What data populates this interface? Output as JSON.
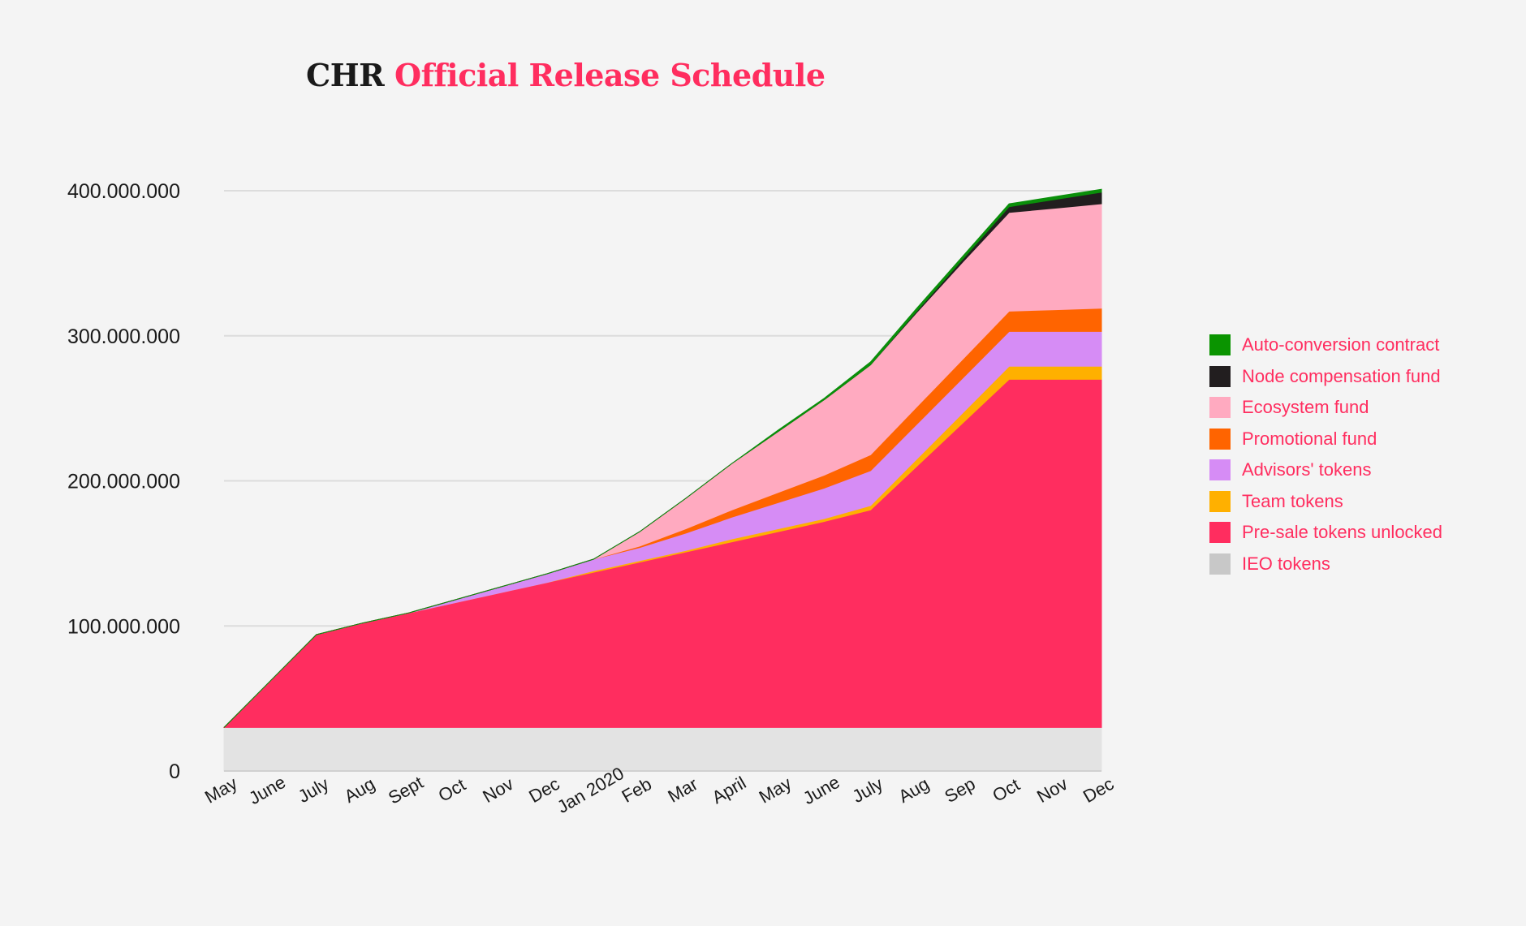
{
  "chart_data": {
    "type": "area",
    "stacked": true,
    "title_prefix": "CHR",
    "title_main": "Official Release Schedule",
    "xlabel": "",
    "ylabel": "",
    "ylim": [
      0,
      400000000
    ],
    "y_ticks": [
      {
        "value": 0,
        "label": "0"
      },
      {
        "value": 100000000,
        "label": "100.000.000"
      },
      {
        "value": 200000000,
        "label": "200.000.000"
      },
      {
        "value": 300000000,
        "label": "300.000.000"
      },
      {
        "value": 400000000,
        "label": "400.000.000"
      }
    ],
    "grid": true,
    "legend_position": "right",
    "categories": [
      "May",
      "June",
      "July",
      "Aug",
      "Sept",
      "Oct",
      "Nov",
      "Dec",
      "Jan 2020",
      "Feb",
      "Mar",
      "April",
      "May",
      "June",
      "July",
      "Aug",
      "Sep",
      "Oct",
      "Nov",
      "Dec"
    ],
    "series": [
      {
        "name": "IEO tokens",
        "color": "#e3e3e3",
        "legend_color": "#c8c8c8",
        "values": [
          30000000,
          30000000,
          30000000,
          30000000,
          30000000,
          30000000,
          30000000,
          30000000,
          30000000,
          30000000,
          30000000,
          30000000,
          30000000,
          30000000,
          30000000,
          30000000,
          30000000,
          30000000,
          30000000,
          30000000
        ]
      },
      {
        "name": "Pre-sale tokens unlocked",
        "color": "#ff2d5f",
        "legend_color": "#ff2d5f",
        "values": [
          0,
          32000000,
          64000000,
          72000000,
          79000000,
          86000000,
          93000000,
          100000000,
          107000000,
          114000000,
          121000000,
          128000000,
          135000000,
          142000000,
          150000000,
          180000000,
          210000000,
          240000000,
          240000000,
          240000000
        ]
      },
      {
        "name": "Team tokens",
        "color": "#ffb000",
        "legend_color": "#ffb000",
        "values": [
          0,
          0,
          0,
          0,
          0,
          0,
          0,
          0,
          1000000,
          1000000,
          1000000,
          2000000,
          2000000,
          2000000,
          3000000,
          5000000,
          7000000,
          9000000,
          9000000,
          9000000
        ]
      },
      {
        "name": "Advisors' tokens",
        "color": "#d68cf5",
        "legend_color": "#d68cf5",
        "values": [
          0,
          0,
          0,
          0,
          0,
          2000000,
          4000000,
          6000000,
          8000000,
          9000000,
          12000000,
          15000000,
          18000000,
          21000000,
          24000000,
          24000000,
          24000000,
          24000000,
          24000000,
          24000000
        ]
      },
      {
        "name": "Promotional fund",
        "color": "#ff6400",
        "legend_color": "#ff6400",
        "values": [
          0,
          0,
          0,
          0,
          0,
          0,
          0,
          0,
          0,
          1000000,
          3000000,
          5000000,
          7000000,
          9000000,
          11000000,
          12000000,
          13000000,
          14000000,
          15000000,
          16000000
        ]
      },
      {
        "name": "Ecosystem fund",
        "color": "#ffaac0",
        "legend_color": "#ffaac0",
        "values": [
          0,
          0,
          0,
          0,
          0,
          0,
          0,
          0,
          0,
          10000000,
          21000000,
          32000000,
          42000000,
          52000000,
          62000000,
          65000000,
          67000000,
          68000000,
          70000000,
          72000000
        ]
      },
      {
        "name": "Node compensation fund",
        "color": "#221e1f",
        "legend_color": "#221e1f",
        "values": [
          0,
          0,
          0,
          0,
          0,
          0,
          0,
          0,
          0,
          0,
          0,
          0,
          0,
          0,
          0,
          1000000,
          2000000,
          4000000,
          6000000,
          8000000
        ]
      },
      {
        "name": "Auto-conversion contract",
        "color": "#0a8f0a",
        "legend_color": "#0a9400",
        "values": [
          0,
          0,
          0,
          0,
          0,
          0,
          0,
          0,
          0,
          0,
          0,
          0,
          1000000,
          1000000,
          2000000,
          2000000,
          2000000,
          2000000,
          2000000,
          2000000
        ]
      }
    ],
    "legend_order": [
      "Auto-conversion contract",
      "Node compensation fund",
      "Ecosystem fund",
      "Promotional fund",
      "Advisors' tokens",
      "Team tokens",
      "Pre-sale tokens unlocked",
      "IEO tokens"
    ]
  }
}
